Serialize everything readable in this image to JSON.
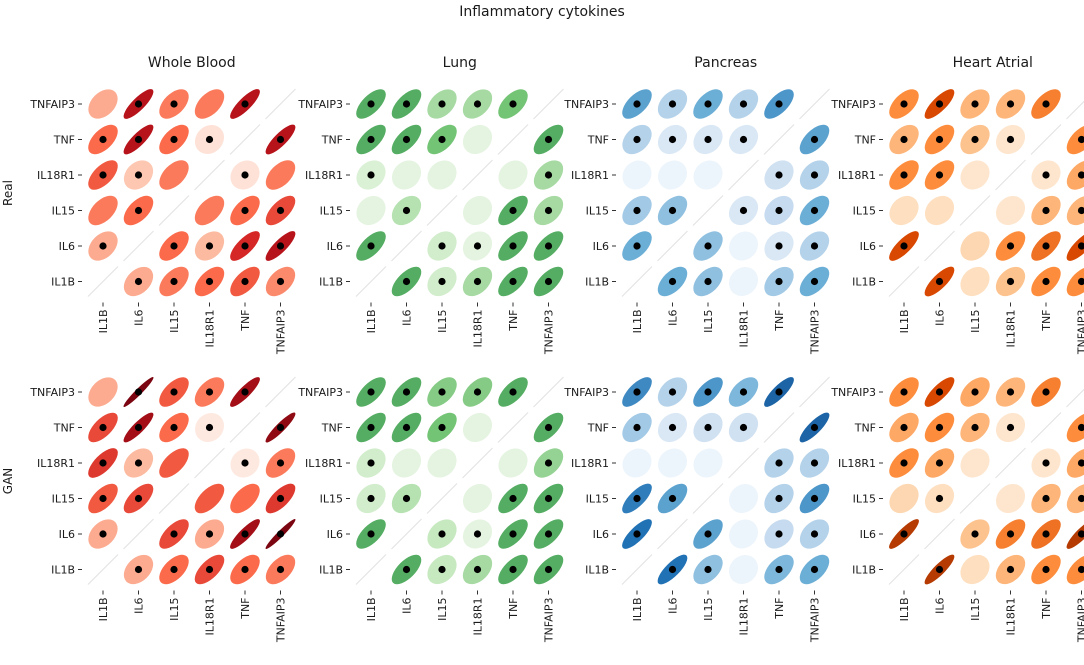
{
  "title": "Inflammatory cytokines",
  "chart_data": {
    "type": "correlation-ellipse-matrix",
    "title": "Inflammatory cytokines",
    "genes": [
      "IL1B",
      "IL6",
      "IL15",
      "IL18R1",
      "TNF",
      "TNFAIP3"
    ],
    "tissues": [
      "Whole Blood",
      "Lung",
      "Pancreas",
      "Heart Atrial"
    ],
    "conditions": [
      "Real",
      "GAN"
    ],
    "colormaps": {
      "Whole Blood": [
        "#fff5f0",
        "#fcbba1",
        "#fb6a4a",
        "#cb181d",
        "#67000d"
      ],
      "Lung": [
        "#f7fcf5",
        "#c7e9c0",
        "#74c476",
        "#238b45",
        "#00441b"
      ],
      "Pancreas": [
        "#f7fbff",
        "#c6dbef",
        "#6baed6",
        "#2171b5",
        "#08306b"
      ],
      "Heart Atrial": [
        "#fff5eb",
        "#fdd0a2",
        "#fd8d3c",
        "#d94801",
        "#7f2704"
      ]
    },
    "cell_note": "matrix[row][col]; rows = y-axis genes top to bottom (TNFAIP3 ... IL1B), cols = x-axis genes (IL1B ... TNFAIP3); value = correlation; null = diagonal; dot = significance marker",
    "panels": [
      {
        "tissue": "Whole Blood",
        "condition": "Real",
        "matrix": [
          [
            0.3,
            0.8,
            0.45,
            0.45,
            0.8,
            null
          ],
          [
            0.5,
            0.8,
            0.5,
            0.08,
            null,
            0.8
          ],
          [
            0.55,
            0.2,
            0.45,
            null,
            0.08,
            0.45
          ],
          [
            0.45,
            0.5,
            null,
            0.45,
            0.5,
            0.6
          ],
          [
            0.3,
            null,
            0.5,
            0.25,
            0.7,
            0.8
          ],
          [
            null,
            0.3,
            0.45,
            0.5,
            0.55,
            0.4
          ]
        ],
        "dots": [
          [
            0,
            1,
            1,
            0,
            1,
            0
          ],
          [
            1,
            1,
            1,
            1,
            0,
            1
          ],
          [
            1,
            1,
            0,
            0,
            1,
            0
          ],
          [
            0,
            1,
            0,
            0,
            1,
            1
          ],
          [
            1,
            0,
            1,
            1,
            1,
            1
          ],
          [
            0,
            1,
            1,
            1,
            1,
            1
          ]
        ]
      },
      {
        "tissue": "Whole Blood",
        "condition": "GAN",
        "matrix": [
          [
            0.3,
            0.95,
            0.55,
            0.45,
            0.85,
            null
          ],
          [
            0.6,
            0.85,
            0.5,
            0.05,
            null,
            0.9
          ],
          [
            0.65,
            0.25,
            0.55,
            null,
            0.05,
            0.45
          ],
          [
            0.55,
            0.6,
            null,
            0.55,
            0.5,
            0.65
          ],
          [
            0.3,
            null,
            0.6,
            0.3,
            0.85,
            0.95
          ],
          [
            null,
            0.3,
            0.5,
            0.6,
            0.5,
            0.45
          ]
        ],
        "dots": [
          [
            0,
            1,
            1,
            1,
            1,
            0
          ],
          [
            1,
            1,
            1,
            1,
            0,
            1
          ],
          [
            1,
            1,
            0,
            0,
            1,
            1
          ],
          [
            1,
            1,
            0,
            0,
            0,
            1
          ],
          [
            1,
            0,
            1,
            1,
            1,
            1
          ],
          [
            0,
            1,
            1,
            1,
            1,
            1
          ]
        ]
      },
      {
        "tissue": "Lung",
        "condition": "Real",
        "matrix": [
          [
            0.6,
            0.6,
            0.35,
            0.35,
            0.5,
            null
          ],
          [
            0.6,
            0.6,
            0.5,
            0.1,
            null,
            0.6
          ],
          [
            0.15,
            0.1,
            0.1,
            null,
            0.1,
            0.35
          ],
          [
            0.1,
            0.3,
            null,
            0.1,
            0.6,
            0.35
          ],
          [
            0.6,
            null,
            0.2,
            0.1,
            0.6,
            0.6
          ],
          [
            null,
            0.6,
            0.2,
            0.35,
            0.6,
            0.6
          ]
        ],
        "dots": [
          [
            1,
            1,
            1,
            1,
            1,
            0
          ],
          [
            1,
            1,
            1,
            0,
            0,
            1
          ],
          [
            1,
            0,
            0,
            0,
            0,
            1
          ],
          [
            0,
            1,
            0,
            0,
            1,
            1
          ],
          [
            1,
            0,
            1,
            1,
            1,
            1
          ],
          [
            0,
            1,
            1,
            1,
            1,
            1
          ]
        ]
      },
      {
        "tissue": "Lung",
        "condition": "GAN",
        "matrix": [
          [
            0.6,
            0.6,
            0.45,
            0.45,
            0.6,
            null
          ],
          [
            0.6,
            0.6,
            0.5,
            0.1,
            null,
            0.6
          ],
          [
            0.2,
            0.1,
            0.1,
            null,
            0.1,
            0.4
          ],
          [
            0.2,
            0.3,
            null,
            0.1,
            0.6,
            0.6
          ],
          [
            0.6,
            null,
            0.25,
            0.1,
            0.6,
            0.6
          ],
          [
            null,
            0.6,
            0.25,
            0.35,
            0.6,
            0.6
          ]
        ],
        "dots": [
          [
            1,
            1,
            1,
            1,
            1,
            0
          ],
          [
            1,
            1,
            1,
            0,
            0,
            1
          ],
          [
            1,
            0,
            0,
            0,
            0,
            1
          ],
          [
            1,
            1,
            0,
            0,
            1,
            1
          ],
          [
            1,
            0,
            1,
            1,
            1,
            1
          ],
          [
            0,
            1,
            1,
            1,
            1,
            1
          ]
        ]
      },
      {
        "tissue": "Pancreas",
        "condition": "Real",
        "matrix": [
          [
            0.55,
            0.3,
            0.5,
            0.3,
            0.6,
            null
          ],
          [
            0.3,
            0.15,
            0.15,
            0.15,
            null,
            0.55
          ],
          [
            0.05,
            0.05,
            0.05,
            null,
            0.2,
            0.3
          ],
          [
            0.35,
            0.4,
            null,
            0.15,
            0.25,
            0.5
          ],
          [
            0.5,
            null,
            0.4,
            0.05,
            0.15,
            0.3
          ],
          [
            null,
            0.5,
            0.4,
            0.05,
            0.35,
            0.5
          ]
        ],
        "dots": [
          [
            1,
            1,
            1,
            1,
            1,
            0
          ],
          [
            1,
            1,
            1,
            1,
            0,
            1
          ],
          [
            0,
            0,
            0,
            0,
            1,
            1
          ],
          [
            1,
            1,
            0,
            1,
            1,
            1
          ],
          [
            1,
            0,
            1,
            0,
            1,
            1
          ],
          [
            0,
            1,
            1,
            0,
            1,
            1
          ]
        ]
      },
      {
        "tissue": "Pancreas",
        "condition": "GAN",
        "matrix": [
          [
            0.65,
            0.3,
            0.6,
            0.45,
            0.8,
            null
          ],
          [
            0.35,
            0.15,
            0.2,
            0.2,
            null,
            0.8
          ],
          [
            0.05,
            0.05,
            0.05,
            null,
            0.3,
            0.3
          ],
          [
            0.7,
            0.55,
            null,
            0.05,
            0.3,
            0.6
          ],
          [
            0.75,
            null,
            0.55,
            0.05,
            0.25,
            0.3
          ],
          [
            null,
            0.75,
            0.4,
            0.05,
            0.45,
            0.5
          ]
        ],
        "dots": [
          [
            1,
            1,
            1,
            1,
            1,
            0
          ],
          [
            1,
            1,
            1,
            1,
            0,
            1
          ],
          [
            0,
            0,
            0,
            0,
            1,
            1
          ],
          [
            1,
            1,
            0,
            0,
            1,
            1
          ],
          [
            1,
            0,
            1,
            0,
            1,
            1
          ],
          [
            0,
            1,
            1,
            0,
            1,
            1
          ]
        ]
      },
      {
        "tissue": "Heart Atrial",
        "condition": "Real",
        "matrix": [
          [
            0.5,
            0.75,
            0.35,
            0.35,
            0.55,
            null
          ],
          [
            0.35,
            0.5,
            0.3,
            0.1,
            null,
            0.5
          ],
          [
            0.5,
            0.5,
            0.1,
            null,
            0.1,
            0.4
          ],
          [
            0.15,
            0.15,
            null,
            0.1,
            0.35,
            0.35
          ],
          [
            0.75,
            null,
            0.2,
            0.5,
            0.6,
            0.75
          ],
          [
            null,
            0.75,
            0.15,
            0.3,
            0.5,
            0.5
          ]
        ],
        "dots": [
          [
            1,
            1,
            1,
            1,
            1,
            0
          ],
          [
            1,
            1,
            1,
            1,
            0,
            1
          ],
          [
            1,
            1,
            0,
            0,
            1,
            1
          ],
          [
            0,
            0,
            0,
            0,
            1,
            1
          ],
          [
            1,
            0,
            0,
            1,
            1,
            1
          ],
          [
            0,
            1,
            0,
            1,
            1,
            1
          ]
        ]
      },
      {
        "tissue": "Heart Atrial",
        "condition": "GAN",
        "matrix": [
          [
            0.5,
            0.75,
            0.4,
            0.35,
            0.55,
            null
          ],
          [
            0.4,
            0.5,
            0.35,
            0.1,
            null,
            0.5
          ],
          [
            0.5,
            0.4,
            0.1,
            null,
            0.1,
            0.4
          ],
          [
            0.2,
            0.15,
            null,
            0.1,
            0.35,
            0.35
          ],
          [
            0.85,
            null,
            0.3,
            0.55,
            0.6,
            0.85
          ],
          [
            null,
            0.85,
            0.15,
            0.35,
            0.5,
            0.5
          ]
        ],
        "dots": [
          [
            1,
            1,
            1,
            1,
            1,
            0
          ],
          [
            1,
            1,
            1,
            1,
            0,
            1
          ],
          [
            1,
            1,
            0,
            0,
            1,
            1
          ],
          [
            0,
            1,
            0,
            0,
            1,
            1
          ],
          [
            1,
            0,
            1,
            1,
            1,
            1
          ],
          [
            0,
            1,
            0,
            1,
            1,
            1
          ]
        ]
      }
    ]
  }
}
